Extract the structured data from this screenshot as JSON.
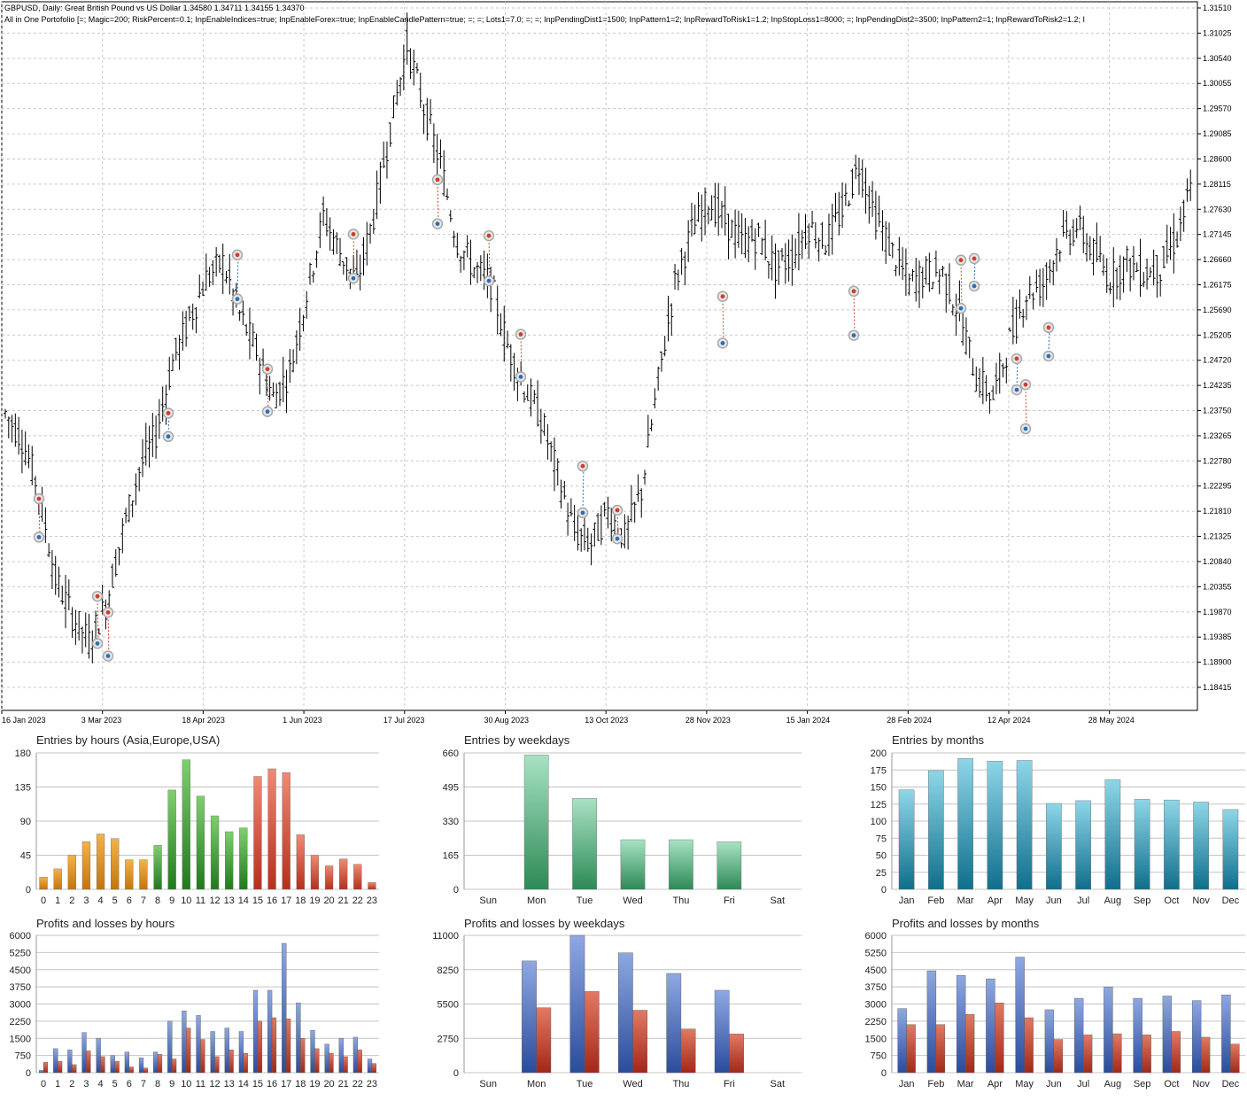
{
  "price_chart": {
    "symbol_line": "GBPUSD, Daily:  Great British Pound vs US Dollar  1.34580 1.34711 1.34155 1.34370",
    "ea_line": "All in One Portofolio [=; Magic=200; RiskPercent=0.1; InpEnableIndices=true; InpEnableForex=true; InpEnableCandlePattern=true; =; =; Lots1=7.0; =; =; InpPendingDist1=1500; InpPattern1=2; InpRewardToRisk1=1.2; InpStopLoss1=8000; =; InpPendingDist2=3500; InpPattern2=1; InpRewardToRisk2=1.2; I",
    "price_levels": [
      "1.31510",
      "1.31025",
      "1.30540",
      "1.30055",
      "1.29570",
      "1.29085",
      "1.28600",
      "1.28115",
      "1.27630",
      "1.27145",
      "1.26660",
      "1.26175",
      "1.25690",
      "1.25205",
      "1.24720",
      "1.24235",
      "1.23750",
      "1.23265",
      "1.22780",
      "1.22295",
      "1.21810",
      "1.21325",
      "1.20840",
      "1.20355",
      "1.19870",
      "1.19385",
      "1.18900",
      "1.18415"
    ],
    "date_labels": [
      "16 Jan 2023",
      "3 Mar 2023",
      "18 Apr 2023",
      "1 Jun 2023",
      "17 Jul 2023",
      "30 Aug 2023",
      "13 Oct 2023",
      "28 Nov 2023",
      "15 Jan 2024",
      "28 Feb 2024",
      "12 Apr 2024",
      "28 May 2024"
    ],
    "closes": [
      1.237,
      1.232,
      1.222,
      1.205,
      1.198,
      1.193,
      1.2,
      1.214,
      1.226,
      1.233,
      1.247,
      1.255,
      1.263,
      1.266,
      1.256,
      1.249,
      1.24,
      1.245,
      1.26,
      1.275,
      1.268,
      1.262,
      1.275,
      1.292,
      1.308,
      1.296,
      1.285,
      1.27,
      1.265,
      1.262,
      1.25,
      1.242,
      1.236,
      1.225,
      1.214,
      1.212,
      1.218,
      1.213,
      1.222,
      1.243,
      1.262,
      1.272,
      1.278,
      1.274,
      1.27,
      1.271,
      1.265,
      1.267,
      1.273,
      1.27,
      1.276,
      1.285,
      1.275,
      1.268,
      1.262,
      1.264,
      1.264,
      1.256,
      1.244,
      1.24,
      1.251,
      1.26,
      1.262,
      1.27,
      1.273,
      1.268,
      1.263,
      1.266,
      1.264,
      1.265,
      1.271,
      1.282
    ],
    "colors": {
      "grid": "#c8c8c8",
      "candle": "#000000",
      "buy": "#2a6fb5",
      "sell": "#d23c28"
    }
  },
  "panels": [
    {
      "id": "entries-hours",
      "title": "Entries by hours (Asia,Europe,USA)",
      "y_labels": [
        "0",
        "45",
        "90",
        "135",
        "180"
      ],
      "y_max": 180
    },
    {
      "id": "entries-weekdays",
      "title": "Entries by weekdays",
      "y_labels": [
        "0",
        "165",
        "330",
        "495",
        "660"
      ],
      "y_max": 660
    },
    {
      "id": "entries-months",
      "title": "Entries by months",
      "y_labels": [
        "0",
        "25",
        "50",
        "75",
        "100",
        "125",
        "150",
        "175",
        "200"
      ],
      "y_max": 200
    },
    {
      "id": "pl-hours",
      "title": "Profits and losses by hours",
      "y_labels": [
        "0",
        "750",
        "1500",
        "2250",
        "3000",
        "3750",
        "4500",
        "5250",
        "6000"
      ],
      "y_max": 6000
    },
    {
      "id": "pl-weekdays",
      "title": "Profits and losses by weekdays",
      "y_labels": [
        "0",
        "2750",
        "5500",
        "8250",
        "11000"
      ],
      "y_max": 11000
    },
    {
      "id": "pl-months",
      "title": "Profits and losses by months",
      "y_labels": [
        "0",
        "750",
        "1500",
        "2250",
        "3000",
        "3750",
        "4500",
        "5250",
        "6000"
      ],
      "y_max": 6000
    }
  ],
  "chart_data": [
    {
      "type": "bar",
      "title": "Entries by hours (Asia,Europe,USA)",
      "categories": [
        "0",
        "1",
        "2",
        "3",
        "4",
        "5",
        "6",
        "7",
        "8",
        "9",
        "10",
        "11",
        "12",
        "13",
        "14",
        "15",
        "16",
        "17",
        "18",
        "19",
        "20",
        "21",
        "22",
        "23"
      ],
      "values": [
        16,
        27,
        45,
        63,
        73,
        67,
        39,
        39,
        58,
        131,
        171,
        123,
        97,
        76,
        81,
        149,
        159,
        154,
        72,
        45,
        31,
        40,
        33,
        9
      ],
      "ylim": [
        0,
        180
      ],
      "colors": {
        "asia": "#d48a1c",
        "europe": "#3a9a34",
        "usa": "#c94a35"
      }
    },
    {
      "type": "bar",
      "title": "Entries by weekdays",
      "categories": [
        "Sun",
        "Mon",
        "Tue",
        "Wed",
        "Thu",
        "Fri",
        "Sat"
      ],
      "values": [
        0,
        650,
        440,
        240,
        240,
        230,
        0
      ],
      "ylim": [
        0,
        660
      ],
      "colors": {
        "bar": "#4caf75"
      }
    },
    {
      "type": "bar",
      "title": "Entries by months",
      "categories": [
        "Jan",
        "Feb",
        "Mar",
        "Apr",
        "May",
        "Jun",
        "Jul",
        "Aug",
        "Sep",
        "Oct",
        "Nov",
        "Dec"
      ],
      "values": [
        146,
        174,
        192,
        188,
        189,
        126,
        130,
        161,
        132,
        131,
        128,
        117
      ],
      "ylim": [
        0,
        200
      ],
      "colors": {
        "bar": "#2a9ab8"
      }
    },
    {
      "type": "bar",
      "title": "Profits and losses by hours",
      "categories": [
        "0",
        "1",
        "2",
        "3",
        "4",
        "5",
        "6",
        "7",
        "8",
        "9",
        "10",
        "11",
        "12",
        "13",
        "14",
        "15",
        "16",
        "17",
        "18",
        "19",
        "20",
        "21",
        "22",
        "23"
      ],
      "series": [
        {
          "values": [
            100,
            1050,
            1000,
            1750,
            1500,
            750,
            900,
            650,
            900,
            2250,
            2700,
            2500,
            1800,
            1950,
            1800,
            3600,
            3600,
            5650,
            3050,
            1850,
            1250,
            1500,
            1550,
            600
          ]
        },
        {
          "values": [
            450,
            500,
            350,
            950,
            700,
            500,
            250,
            200,
            800,
            600,
            1950,
            1450,
            700,
            1000,
            850,
            2250,
            2400,
            2350,
            1500,
            1050,
            850,
            700,
            1000,
            400
          ]
        }
      ],
      "ylim": [
        0,
        6000
      ],
      "colors": {
        "profit": "#3d5fb0",
        "loss": "#b8382a"
      }
    },
    {
      "type": "bar",
      "title": "Profits and losses by weekdays",
      "categories": [
        "Sun",
        "Mon",
        "Tue",
        "Wed",
        "Thu",
        "Fri",
        "Sat"
      ],
      "series": [
        {
          "values": [
            0,
            8950,
            11000,
            9600,
            7950,
            6600,
            0
          ]
        },
        {
          "values": [
            0,
            5200,
            6500,
            5000,
            3500,
            3100,
            0
          ]
        }
      ],
      "ylim": [
        0,
        11000
      ],
      "colors": {
        "profit": "#3d5fb0",
        "loss": "#b8382a"
      }
    },
    {
      "type": "bar",
      "title": "Profits and losses by months",
      "categories": [
        "Jan",
        "Feb",
        "Mar",
        "Apr",
        "May",
        "Jun",
        "Jul",
        "Aug",
        "Sep",
        "Oct",
        "Nov",
        "Dec"
      ],
      "series": [
        {
          "values": [
            2800,
            4450,
            4250,
            4100,
            5050,
            2750,
            3250,
            3750,
            3250,
            3350,
            3150,
            3400
          ]
        },
        {
          "values": [
            2100,
            2100,
            2550,
            3050,
            2400,
            1450,
            1650,
            1700,
            1650,
            1800,
            1550,
            1250
          ]
        }
      ],
      "ylim": [
        0,
        6000
      ],
      "colors": {
        "profit": "#3d5fb0",
        "loss": "#b8382a"
      }
    }
  ]
}
